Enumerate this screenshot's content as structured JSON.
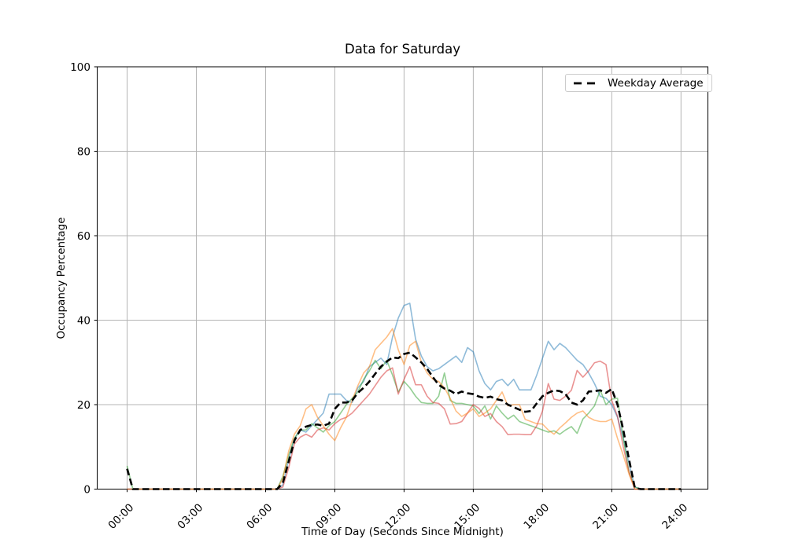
{
  "figure": {
    "title": "Data for Saturday",
    "xlabel": "Time of Day (Seconds Since Midnight)",
    "ylabel": "Occupancy Percentage"
  },
  "legend": {
    "entries": [
      {
        "label": "Weekday Average",
        "color": "#000000",
        "style": "dashed"
      }
    ]
  },
  "colors": {
    "grid": "#b4b4b4",
    "spine": "#000000",
    "tick_text": "#000000"
  },
  "chart_data": {
    "type": "line",
    "title": "Data for Saturday",
    "xlabel": "Time of Day (Seconds Since Midnight)",
    "ylabel": "Occupancy Percentage",
    "ylim": [
      0,
      100
    ],
    "xlim_seconds": [
      0,
      86400
    ],
    "grid": true,
    "legend_position": "upper right",
    "x_tick_seconds": [
      0,
      10800,
      21600,
      32400,
      43200,
      54000,
      64800,
      75600,
      86400
    ],
    "x_tick_labels": [
      "00:00",
      "03:00",
      "06:00",
      "09:00",
      "12:00",
      "15:00",
      "18:00",
      "21:00",
      "24:00"
    ],
    "y_ticks": [
      0,
      20,
      40,
      60,
      80,
      100
    ],
    "y_tick_labels": [
      "0",
      "20",
      "40",
      "60",
      "80",
      "100"
    ],
    "x_seconds": [
      0,
      900,
      1800,
      2700,
      3600,
      4500,
      5400,
      6300,
      7200,
      8100,
      9000,
      9900,
      10800,
      11700,
      12600,
      13500,
      14400,
      15300,
      16200,
      17100,
      18000,
      18900,
      19800,
      20700,
      21600,
      22500,
      23400,
      24300,
      25200,
      26100,
      27000,
      27900,
      28800,
      29700,
      30600,
      31500,
      32400,
      33300,
      34200,
      35100,
      36000,
      36900,
      37800,
      38700,
      39600,
      40500,
      41400,
      42300,
      43200,
      44100,
      45000,
      45900,
      46800,
      47700,
      48600,
      49500,
      50400,
      51300,
      52200,
      53100,
      54000,
      54900,
      55800,
      56700,
      57600,
      58500,
      59400,
      60300,
      61200,
      62100,
      63000,
      63900,
      64800,
      65700,
      66600,
      67500,
      68400,
      69300,
      70200,
      71100,
      72000,
      72900,
      73800,
      74700,
      75600,
      76500,
      77400,
      78300,
      79200,
      80100,
      81000,
      81900,
      82800,
      83700,
      84600,
      85500,
      86400
    ],
    "series": [
      {
        "name": "series_1_blue",
        "color": "#1f77b4",
        "opacity": 0.5,
        "linewidth": 1.6,
        "dash": null,
        "in_legend": false,
        "values": [
          0,
          0,
          0,
          0,
          0,
          0,
          0,
          0,
          0,
          0,
          0,
          0,
          0,
          0,
          0,
          0,
          0,
          0,
          0,
          0,
          0,
          0,
          0,
          0,
          0,
          0,
          0,
          1,
          7,
          12,
          14,
          13.5,
          15,
          16.5,
          18,
          22.5,
          22.5,
          22.5,
          21,
          20.5,
          24,
          25.5,
          29,
          30,
          31,
          29.5,
          36,
          40.5,
          43.5,
          44,
          35.5,
          31.5,
          29,
          28,
          28.5,
          29.5,
          30.5,
          31.5,
          30,
          33.5,
          32.5,
          28,
          25,
          23.5,
          25.5,
          26,
          24.5,
          26,
          23.5,
          23.5,
          23.5,
          27,
          31,
          35,
          33,
          34.5,
          33.5,
          32,
          30.5,
          29.5,
          27.5,
          25,
          22,
          21.5,
          20,
          17,
          12,
          6,
          0.5,
          0,
          0,
          0,
          0,
          0,
          0,
          0,
          0
        ]
      },
      {
        "name": "series_2_green",
        "color": "#2ca02c",
        "opacity": 0.5,
        "linewidth": 1.6,
        "dash": null,
        "in_legend": false,
        "values": [
          5.5,
          0,
          0,
          0,
          0,
          0,
          0,
          0,
          0,
          0,
          0,
          0,
          0,
          0,
          0,
          0,
          0,
          0,
          0,
          0,
          0,
          0,
          0,
          0,
          0,
          0,
          0,
          3,
          8,
          12,
          14,
          14,
          15.5,
          14.5,
          13.5,
          15,
          16,
          18,
          20,
          21.5,
          23,
          26,
          28,
          30.5,
          28.5,
          30.5,
          27,
          23,
          25.5,
          24,
          22,
          20.5,
          20.3,
          20.3,
          22,
          27.5,
          21,
          20.3,
          20.3,
          20,
          19.7,
          17.9,
          19.7,
          16.6,
          19.7,
          18,
          16.6,
          17.5,
          16,
          15.5,
          15,
          14.5,
          14,
          13.5,
          13.8,
          13,
          14,
          14.8,
          13.2,
          16.6,
          18,
          19.7,
          23.4,
          20,
          21.3,
          21.5,
          12,
          4,
          0.5,
          0,
          0,
          0,
          0,
          0,
          0,
          0,
          0
        ]
      },
      {
        "name": "series_3_red",
        "color": "#d62728",
        "opacity": 0.5,
        "linewidth": 1.6,
        "dash": null,
        "in_legend": false,
        "values": [
          0,
          0,
          0,
          0,
          0,
          0,
          0,
          0,
          0,
          0,
          0,
          0,
          0,
          0,
          0,
          0,
          0,
          0,
          0,
          0,
          0,
          0,
          0,
          0,
          0,
          0,
          0,
          0.5,
          5,
          10.7,
          12.3,
          13,
          12.3,
          14,
          14.5,
          14,
          15.5,
          16.5,
          17,
          18,
          19.5,
          21,
          22.5,
          24.5,
          26.5,
          28,
          28.7,
          22.5,
          26,
          29,
          24.7,
          24.7,
          22,
          20.5,
          20.3,
          19,
          15.4,
          15.5,
          16,
          18,
          20,
          19.1,
          17.2,
          17.9,
          16,
          14.8,
          12.9,
          13,
          13,
          12.9,
          12.9,
          15,
          18.5,
          25,
          21.3,
          21,
          22,
          23.4,
          28.1,
          26.5,
          28,
          29.9,
          30.3,
          29.5,
          21,
          17.2,
          10,
          4,
          0,
          0,
          0,
          0,
          0,
          0,
          0,
          0,
          0
        ]
      },
      {
        "name": "series_4_orange",
        "color": "#ff7f0e",
        "opacity": 0.5,
        "linewidth": 1.6,
        "dash": null,
        "in_legend": false,
        "values": [
          0,
          0,
          0,
          0,
          0,
          0,
          0,
          0,
          0,
          0,
          0,
          0,
          0,
          0,
          0,
          0,
          0,
          0,
          0,
          0,
          0,
          0,
          0,
          0,
          0,
          0,
          0,
          2.5,
          9,
          13,
          15,
          19,
          20,
          17,
          15,
          13,
          11.5,
          14.5,
          17,
          21,
          24.5,
          27.5,
          29,
          33,
          34.5,
          36,
          38,
          33,
          29.5,
          34,
          35,
          30,
          27.5,
          26,
          25.5,
          24,
          21.5,
          18.5,
          17.2,
          18,
          19,
          17.2,
          18,
          19,
          21,
          23,
          19.7,
          20,
          20,
          16.5,
          16,
          15.5,
          15.4,
          14,
          13,
          14.5,
          15.7,
          17,
          18,
          18.5,
          17,
          16.3,
          16,
          16,
          16.6,
          12,
          8,
          3.5,
          0,
          0,
          0,
          0,
          0,
          0,
          0,
          0,
          0
        ]
      },
      {
        "name": "Weekday Average",
        "color": "#000000",
        "opacity": 1,
        "linewidth": 2.6,
        "dash": [
          8.5,
          4.5
        ],
        "in_legend": true,
        "values": [
          4.8,
          0,
          0,
          0,
          0,
          0,
          0,
          0,
          0,
          0,
          0,
          0,
          0,
          0,
          0,
          0,
          0,
          0,
          0,
          0,
          0,
          0,
          0,
          0,
          0,
          0,
          0,
          1.5,
          6.5,
          11.5,
          14,
          14.8,
          15.2,
          15.3,
          15,
          15.5,
          19,
          20.5,
          20.5,
          21,
          22.8,
          24,
          25.5,
          27.3,
          29,
          30.2,
          31.2,
          31,
          32,
          32.3,
          31.2,
          30,
          28.5,
          26.5,
          24.7,
          23.8,
          23.3,
          22.5,
          23.1,
          22.7,
          22.5,
          21.9,
          21.6,
          21.9,
          21.3,
          21,
          20,
          19.4,
          18.8,
          18.3,
          18.5,
          20.3,
          22,
          22.8,
          23.4,
          23.2,
          22.5,
          20.5,
          20,
          21,
          23.1,
          23.2,
          23.4,
          22.8,
          23.7,
          20,
          14,
          7,
          0.3,
          0,
          0,
          0,
          0,
          0,
          0,
          0,
          0
        ]
      }
    ]
  }
}
